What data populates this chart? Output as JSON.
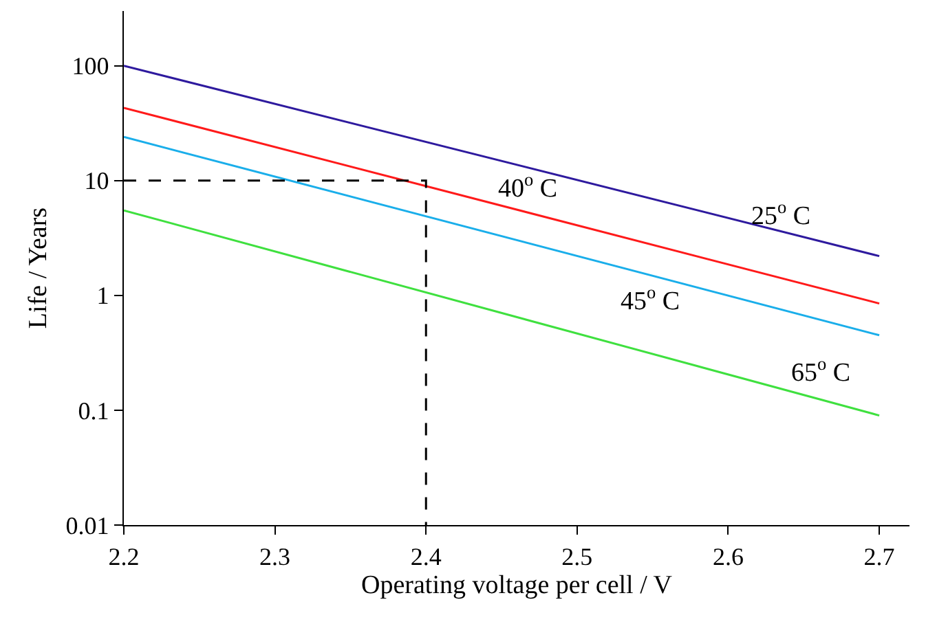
{
  "chart_data": {
    "type": "line",
    "xlabel": "Operating voltage per cell / V",
    "ylabel": "Life / Years",
    "log": "y",
    "xlim": [
      2.2,
      2.72
    ],
    "xticks": [
      2.2,
      2.3,
      2.4,
      2.5,
      2.6,
      2.7
    ],
    "ylim": [
      0.01,
      300
    ],
    "yticks": [
      0.01,
      0.1,
      1,
      10,
      100
    ],
    "grid": false,
    "legend": false,
    "marker": "none",
    "series": [
      {
        "name": "25$^{o}$ C",
        "x": [
          2.2,
          2.7
        ],
        "values": [
          100,
          2.2
        ],
        "color": "#2e1a9e",
        "line_style": "solid"
      },
      {
        "name": "40$^{o}$ C",
        "x": [
          2.2,
          2.7
        ],
        "values": [
          43,
          0.85
        ],
        "color": "#ff1a1a",
        "line_style": "solid"
      },
      {
        "name": "45$^{o}$ C",
        "x": [
          2.2,
          2.7
        ],
        "values": [
          24,
          0.45
        ],
        "color": "#1aaeea",
        "line_style": "solid"
      },
      {
        "name": "65$^{o}$ C",
        "x": [
          2.2,
          2.7
        ],
        "values": [
          5.5,
          0.09
        ],
        "color": "#3fe03f",
        "line_style": "solid"
      },
      {
        "x": [
          2.2,
          2.4,
          2.4
        ],
        "values": [
          10,
          10,
          0.01
        ],
        "color": "#000000",
        "line_style": "dashed"
      }
    ]
  }
}
